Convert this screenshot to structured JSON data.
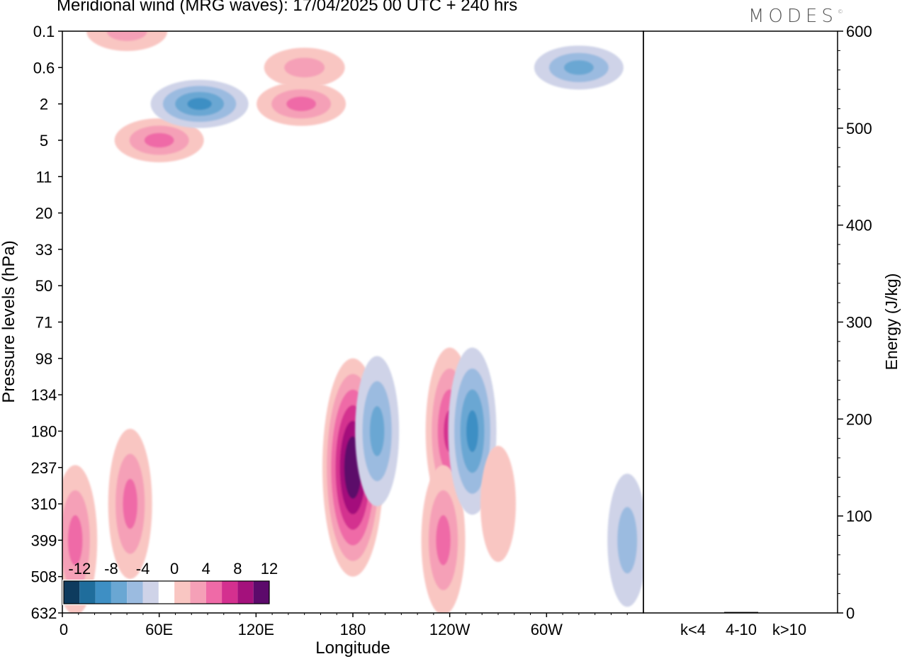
{
  "header": {
    "title": "Meridional wind (MRG waves):  17/04/2025  00 UTC  + 240 hrs",
    "logo": "MODES",
    "logo_mark": "©"
  },
  "chart_data": [
    {
      "type": "heatmap",
      "title": "Meridional wind (MRG waves):  17/04/2025  00 UTC  + 240 hrs",
      "xlabel": "Longitude",
      "ylabel": "Pressure levels (hPa)",
      "x_ticks": [
        "0",
        "60E",
        "120E",
        "180",
        "120W",
        "60W"
      ],
      "y_ticks": [
        "0.1",
        "0.6",
        "2",
        "5",
        "11",
        "20",
        "33",
        "50",
        "71",
        "98",
        "134",
        "180",
        "237",
        "310",
        "399",
        "508",
        "632"
      ],
      "colorbar": {
        "tick_labels": [
          "-12",
          "-8",
          "-4",
          "0",
          "4",
          "8",
          "12"
        ],
        "levels": [
          -14,
          -12,
          -10,
          -8,
          -6,
          -4,
          -2,
          2,
          4,
          6,
          8,
          10,
          12,
          14
        ],
        "colors": [
          "#0e3b5e",
          "#1f6d9c",
          "#3e8fc4",
          "#6aa7d3",
          "#9bbbe0",
          "#cfd3e8",
          "#ffffff",
          "#f9c6c2",
          "#f5a0b7",
          "#ef6aa7",
          "#d4308f",
          "#a4117c",
          "#5c0a6b"
        ]
      },
      "features": [
        {
          "lon": 8,
          "p": 399,
          "value": 6
        },
        {
          "lon": 42,
          "p": 310,
          "value": 6
        },
        {
          "lon": 180,
          "p": 237,
          "value": 14
        },
        {
          "lon": 195,
          "p": 180,
          "value": -6
        },
        {
          "lon": 240,
          "p": 180,
          "value": 8
        },
        {
          "lon": 236,
          "p": 399,
          "value": 6
        },
        {
          "lon": 254,
          "p": 180,
          "value": -8
        },
        {
          "lon": 270,
          "p": 310,
          "value": 2
        },
        {
          "lon": 350,
          "p": 399,
          "value": -4
        },
        {
          "lon": 60,
          "p": 5,
          "value": 6
        },
        {
          "lon": 85,
          "p": 2,
          "value": -8
        },
        {
          "lon": 148,
          "p": 2,
          "value": 6
        },
        {
          "lon": 150,
          "p": 0.6,
          "value": 4
        },
        {
          "lon": 320,
          "p": 0.6,
          "value": -6
        },
        {
          "lon": 40,
          "p": 0.1,
          "value": 4
        }
      ]
    },
    {
      "type": "bar",
      "ylabel": "Energy (J/kg)",
      "categories": [
        "k<4",
        "4-10",
        "k>10"
      ],
      "values": [
        0,
        1,
        0
      ],
      "ylim": [
        0,
        600
      ],
      "y_ticks": [
        "0",
        "100",
        "200",
        "300",
        "400",
        "500",
        "600"
      ]
    }
  ]
}
